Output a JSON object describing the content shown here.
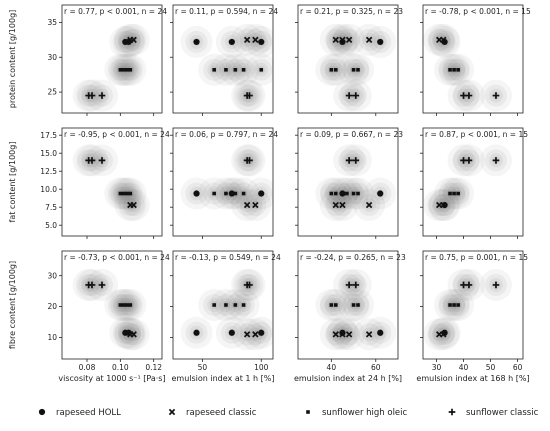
{
  "chart_data": {
    "type": "scatter",
    "x_vars": [
      {
        "label": "viscosity at 1000 s⁻¹ [Pa·s]",
        "ticks": [
          "0.08",
          "0.10",
          "0.12"
        ],
        "tick_values": [
          0.08,
          0.1,
          0.12
        ],
        "xlim": [
          0.065,
          0.125
        ]
      },
      {
        "label": "emulsion index at 1 h [%]",
        "ticks": [
          "50",
          "100"
        ],
        "tick_values": [
          50,
          100
        ],
        "xlim": [
          25,
          110
        ]
      },
      {
        "label": "emulsion index at 24 h [%]",
        "ticks": [
          "40",
          "60"
        ],
        "tick_values": [
          40,
          60
        ],
        "xlim": [
          25,
          70
        ]
      },
      {
        "label": "emulsion index at 168 h [%]",
        "ticks": [
          "30",
          "40",
          "50",
          "60"
        ],
        "tick_values": [
          30,
          40,
          50,
          60
        ],
        "xlim": [
          25,
          62
        ]
      }
    ],
    "y_vars": [
      {
        "label": "protein content [g/100g]",
        "ticks": [
          "25",
          "30",
          "35"
        ],
        "tick_values": [
          25,
          30,
          35
        ],
        "ylim": [
          22,
          37.5
        ]
      },
      {
        "label": "fat content [g/100g]",
        "ticks": [
          "5.0",
          "7.5",
          "10.0",
          "12.5",
          "15.0",
          "17.5"
        ],
        "tick_values": [
          5,
          7.5,
          10,
          12.5,
          15,
          17.5
        ],
        "ylim": [
          3.5,
          18.5
        ]
      },
      {
        "label": "fibre content [g/100g]",
        "ticks": [
          "10",
          "20",
          "30"
        ],
        "tick_values": [
          10,
          20,
          30
        ],
        "ylim": [
          3,
          38
        ]
      }
    ],
    "panels": [
      {
        "row": 0,
        "col": 0,
        "annotation": "r = 0.77, p < 0.001, n = 24",
        "points": [
          {
            "series": 0,
            "x": 0.103,
            "y": 32.2
          },
          {
            "series": 0,
            "x": 0.105,
            "y": 32.2
          },
          {
            "series": 1,
            "x": 0.106,
            "y": 32.5
          },
          {
            "series": 1,
            "x": 0.108,
            "y": 32.5
          },
          {
            "series": 2,
            "x": 0.1,
            "y": 28.2
          },
          {
            "series": 2,
            "x": 0.102,
            "y": 28.2
          },
          {
            "series": 2,
            "x": 0.104,
            "y": 28.2
          },
          {
            "series": 2,
            "x": 0.106,
            "y": 28.2
          },
          {
            "series": 3,
            "x": 0.081,
            "y": 24.5
          },
          {
            "series": 3,
            "x": 0.083,
            "y": 24.5
          },
          {
            "series": 3,
            "x": 0.089,
            "y": 24.5
          }
        ]
      },
      {
        "row": 0,
        "col": 1,
        "annotation": "r = 0.11, p = 0.594, n = 24",
        "points": [
          {
            "series": 0,
            "x": 45,
            "y": 32.2
          },
          {
            "series": 0,
            "x": 75,
            "y": 32.2
          },
          {
            "series": 0,
            "x": 100,
            "y": 32.2
          },
          {
            "series": 1,
            "x": 88,
            "y": 32.5
          },
          {
            "series": 1,
            "x": 95,
            "y": 32.5
          },
          {
            "series": 2,
            "x": 60,
            "y": 28.2
          },
          {
            "series": 2,
            "x": 70,
            "y": 28.2
          },
          {
            "series": 2,
            "x": 78,
            "y": 28.2
          },
          {
            "series": 2,
            "x": 85,
            "y": 28.2
          },
          {
            "series": 2,
            "x": 100,
            "y": 28.2
          },
          {
            "series": 3,
            "x": 88,
            "y": 24.5
          },
          {
            "series": 3,
            "x": 90,
            "y": 24.5
          }
        ]
      },
      {
        "row": 0,
        "col": 2,
        "annotation": "r = 0.21, p = 0.325, n = 23",
        "points": [
          {
            "series": 0,
            "x": 45,
            "y": 32.2
          },
          {
            "series": 0,
            "x": 62,
            "y": 32.2
          },
          {
            "series": 1,
            "x": 42,
            "y": 32.5
          },
          {
            "series": 1,
            "x": 45,
            "y": 32.5
          },
          {
            "series": 1,
            "x": 48,
            "y": 32.5
          },
          {
            "series": 1,
            "x": 57,
            "y": 32.5
          },
          {
            "series": 2,
            "x": 40,
            "y": 28.2
          },
          {
            "series": 2,
            "x": 42,
            "y": 28.2
          },
          {
            "series": 2,
            "x": 50,
            "y": 28.2
          },
          {
            "series": 2,
            "x": 52,
            "y": 28.2
          },
          {
            "series": 3,
            "x": 48,
            "y": 24.5
          },
          {
            "series": 3,
            "x": 51,
            "y": 24.5
          }
        ]
      },
      {
        "row": 0,
        "col": 3,
        "annotation": "r = -0.78, p < 0.001, n = 15",
        "points": [
          {
            "series": 0,
            "x": 33,
            "y": 32.2
          },
          {
            "series": 1,
            "x": 31,
            "y": 32.5
          },
          {
            "series": 1,
            "x": 32.5,
            "y": 32.5
          },
          {
            "series": 2,
            "x": 35,
            "y": 28.2
          },
          {
            "series": 2,
            "x": 36.5,
            "y": 28.2
          },
          {
            "series": 2,
            "x": 38,
            "y": 28.2
          },
          {
            "series": 3,
            "x": 40,
            "y": 24.5
          },
          {
            "series": 3,
            "x": 42,
            "y": 24.5
          },
          {
            "series": 3,
            "x": 52,
            "y": 24.5
          }
        ]
      },
      {
        "row": 1,
        "col": 0,
        "annotation": "r = -0.95, p < 0.001, n = 24",
        "points": [
          {
            "series": 3,
            "x": 0.081,
            "y": 14.0
          },
          {
            "series": 3,
            "x": 0.083,
            "y": 14.0
          },
          {
            "series": 3,
            "x": 0.089,
            "y": 14.0
          },
          {
            "series": 2,
            "x": 0.1,
            "y": 9.4
          },
          {
            "series": 2,
            "x": 0.102,
            "y": 9.4
          },
          {
            "series": 2,
            "x": 0.104,
            "y": 9.4
          },
          {
            "series": 2,
            "x": 0.106,
            "y": 9.4
          },
          {
            "series": 1,
            "x": 0.106,
            "y": 7.8
          },
          {
            "series": 1,
            "x": 0.108,
            "y": 7.8
          }
        ]
      },
      {
        "row": 1,
        "col": 1,
        "annotation": "r = 0.06, p = 0.797, n = 24",
        "points": [
          {
            "series": 3,
            "x": 88,
            "y": 14.0
          },
          {
            "series": 3,
            "x": 90,
            "y": 14.0
          },
          {
            "series": 0,
            "x": 45,
            "y": 9.4
          },
          {
            "series": 0,
            "x": 75,
            "y": 9.4
          },
          {
            "series": 0,
            "x": 100,
            "y": 9.4
          },
          {
            "series": 2,
            "x": 60,
            "y": 9.4
          },
          {
            "series": 2,
            "x": 70,
            "y": 9.4
          },
          {
            "series": 2,
            "x": 78,
            "y": 9.4
          },
          {
            "series": 2,
            "x": 85,
            "y": 9.4
          },
          {
            "series": 1,
            "x": 88,
            "y": 7.8
          },
          {
            "series": 1,
            "x": 95,
            "y": 7.8
          }
        ]
      },
      {
        "row": 1,
        "col": 2,
        "annotation": "r = 0.09, p = 0.667, n = 23",
        "points": [
          {
            "series": 3,
            "x": 48,
            "y": 14.0
          },
          {
            "series": 3,
            "x": 51,
            "y": 14.0
          },
          {
            "series": 0,
            "x": 45,
            "y": 9.4
          },
          {
            "series": 0,
            "x": 62,
            "y": 9.4
          },
          {
            "series": 2,
            "x": 40,
            "y": 9.4
          },
          {
            "series": 2,
            "x": 42,
            "y": 9.4
          },
          {
            "series": 2,
            "x": 47,
            "y": 9.4
          },
          {
            "series": 2,
            "x": 50,
            "y": 9.4
          },
          {
            "series": 2,
            "x": 52,
            "y": 9.4
          },
          {
            "series": 1,
            "x": 42,
            "y": 7.8
          },
          {
            "series": 1,
            "x": 45,
            "y": 7.8
          },
          {
            "series": 1,
            "x": 57,
            "y": 7.8
          }
        ]
      },
      {
        "row": 1,
        "col": 3,
        "annotation": "r = 0.87, p < 0.001, n = 15",
        "points": [
          {
            "series": 3,
            "x": 40,
            "y": 14.0
          },
          {
            "series": 3,
            "x": 42,
            "y": 14.0
          },
          {
            "series": 3,
            "x": 52,
            "y": 14.0
          },
          {
            "series": 2,
            "x": 35,
            "y": 9.4
          },
          {
            "series": 2,
            "x": 36.5,
            "y": 9.4
          },
          {
            "series": 2,
            "x": 38,
            "y": 9.4
          },
          {
            "series": 0,
            "x": 33,
            "y": 7.8
          },
          {
            "series": 1,
            "x": 31,
            "y": 7.8
          },
          {
            "series": 1,
            "x": 32.5,
            "y": 7.8
          }
        ]
      },
      {
        "row": 2,
        "col": 0,
        "annotation": "r = -0.73, p < 0.001, n = 24",
        "points": [
          {
            "series": 3,
            "x": 0.081,
            "y": 27.0
          },
          {
            "series": 3,
            "x": 0.083,
            "y": 27.0
          },
          {
            "series": 3,
            "x": 0.089,
            "y": 27.0
          },
          {
            "series": 2,
            "x": 0.1,
            "y": 20.5
          },
          {
            "series": 2,
            "x": 0.102,
            "y": 20.5
          },
          {
            "series": 2,
            "x": 0.104,
            "y": 20.5
          },
          {
            "series": 2,
            "x": 0.106,
            "y": 20.5
          },
          {
            "series": 0,
            "x": 0.103,
            "y": 11.5
          },
          {
            "series": 0,
            "x": 0.105,
            "y": 11.5
          },
          {
            "series": 1,
            "x": 0.106,
            "y": 11.0
          },
          {
            "series": 1,
            "x": 0.108,
            "y": 11.0
          }
        ]
      },
      {
        "row": 2,
        "col": 1,
        "annotation": "r = -0.13, p = 0.549, n = 24",
        "points": [
          {
            "series": 3,
            "x": 88,
            "y": 27.0
          },
          {
            "series": 3,
            "x": 90,
            "y": 27.0
          },
          {
            "series": 2,
            "x": 60,
            "y": 20.5
          },
          {
            "series": 2,
            "x": 70,
            "y": 20.5
          },
          {
            "series": 2,
            "x": 78,
            "y": 20.5
          },
          {
            "series": 2,
            "x": 85,
            "y": 20.5
          },
          {
            "series": 0,
            "x": 45,
            "y": 11.5
          },
          {
            "series": 0,
            "x": 75,
            "y": 11.5
          },
          {
            "series": 0,
            "x": 100,
            "y": 11.5
          },
          {
            "series": 1,
            "x": 88,
            "y": 11.0
          },
          {
            "series": 1,
            "x": 95,
            "y": 11.0
          }
        ]
      },
      {
        "row": 2,
        "col": 2,
        "annotation": "r = -0.24, p = 0.265, n = 23",
        "points": [
          {
            "series": 3,
            "x": 48,
            "y": 27.0
          },
          {
            "series": 3,
            "x": 51,
            "y": 27.0
          },
          {
            "series": 2,
            "x": 40,
            "y": 20.5
          },
          {
            "series": 2,
            "x": 42,
            "y": 20.5
          },
          {
            "series": 2,
            "x": 50,
            "y": 20.5
          },
          {
            "series": 2,
            "x": 52,
            "y": 20.5
          },
          {
            "series": 0,
            "x": 45,
            "y": 11.5
          },
          {
            "series": 0,
            "x": 62,
            "y": 11.5
          },
          {
            "series": 1,
            "x": 42,
            "y": 11.0
          },
          {
            "series": 1,
            "x": 45,
            "y": 11.0
          },
          {
            "series": 1,
            "x": 48,
            "y": 11.0
          },
          {
            "series": 1,
            "x": 57,
            "y": 11.0
          }
        ]
      },
      {
        "row": 2,
        "col": 3,
        "annotation": "r = 0.75, p = 0.001, n = 15",
        "points": [
          {
            "series": 3,
            "x": 40,
            "y": 27.0
          },
          {
            "series": 3,
            "x": 42,
            "y": 27.0
          },
          {
            "series": 3,
            "x": 52,
            "y": 27.0
          },
          {
            "series": 2,
            "x": 35,
            "y": 20.5
          },
          {
            "series": 2,
            "x": 36.5,
            "y": 20.5
          },
          {
            "series": 2,
            "x": 38,
            "y": 20.5
          },
          {
            "series": 0,
            "x": 33,
            "y": 11.5
          },
          {
            "series": 1,
            "x": 31,
            "y": 11.0
          },
          {
            "series": 1,
            "x": 32.5,
            "y": 11.0
          }
        ]
      }
    ],
    "series": [
      {
        "name": "rapeseed HOLL",
        "marker": "circle",
        "color": "#111111"
      },
      {
        "name": "rapeseed classic",
        "marker": "x",
        "color": "#111111"
      },
      {
        "name": "sunflower high oleic",
        "marker": "square",
        "color": "#111111"
      },
      {
        "name": "sunflower classic",
        "marker": "plus",
        "color": "#111111"
      }
    ],
    "kde_color": "#7f7f7f",
    "grid": false,
    "legend_position": "bottom"
  }
}
